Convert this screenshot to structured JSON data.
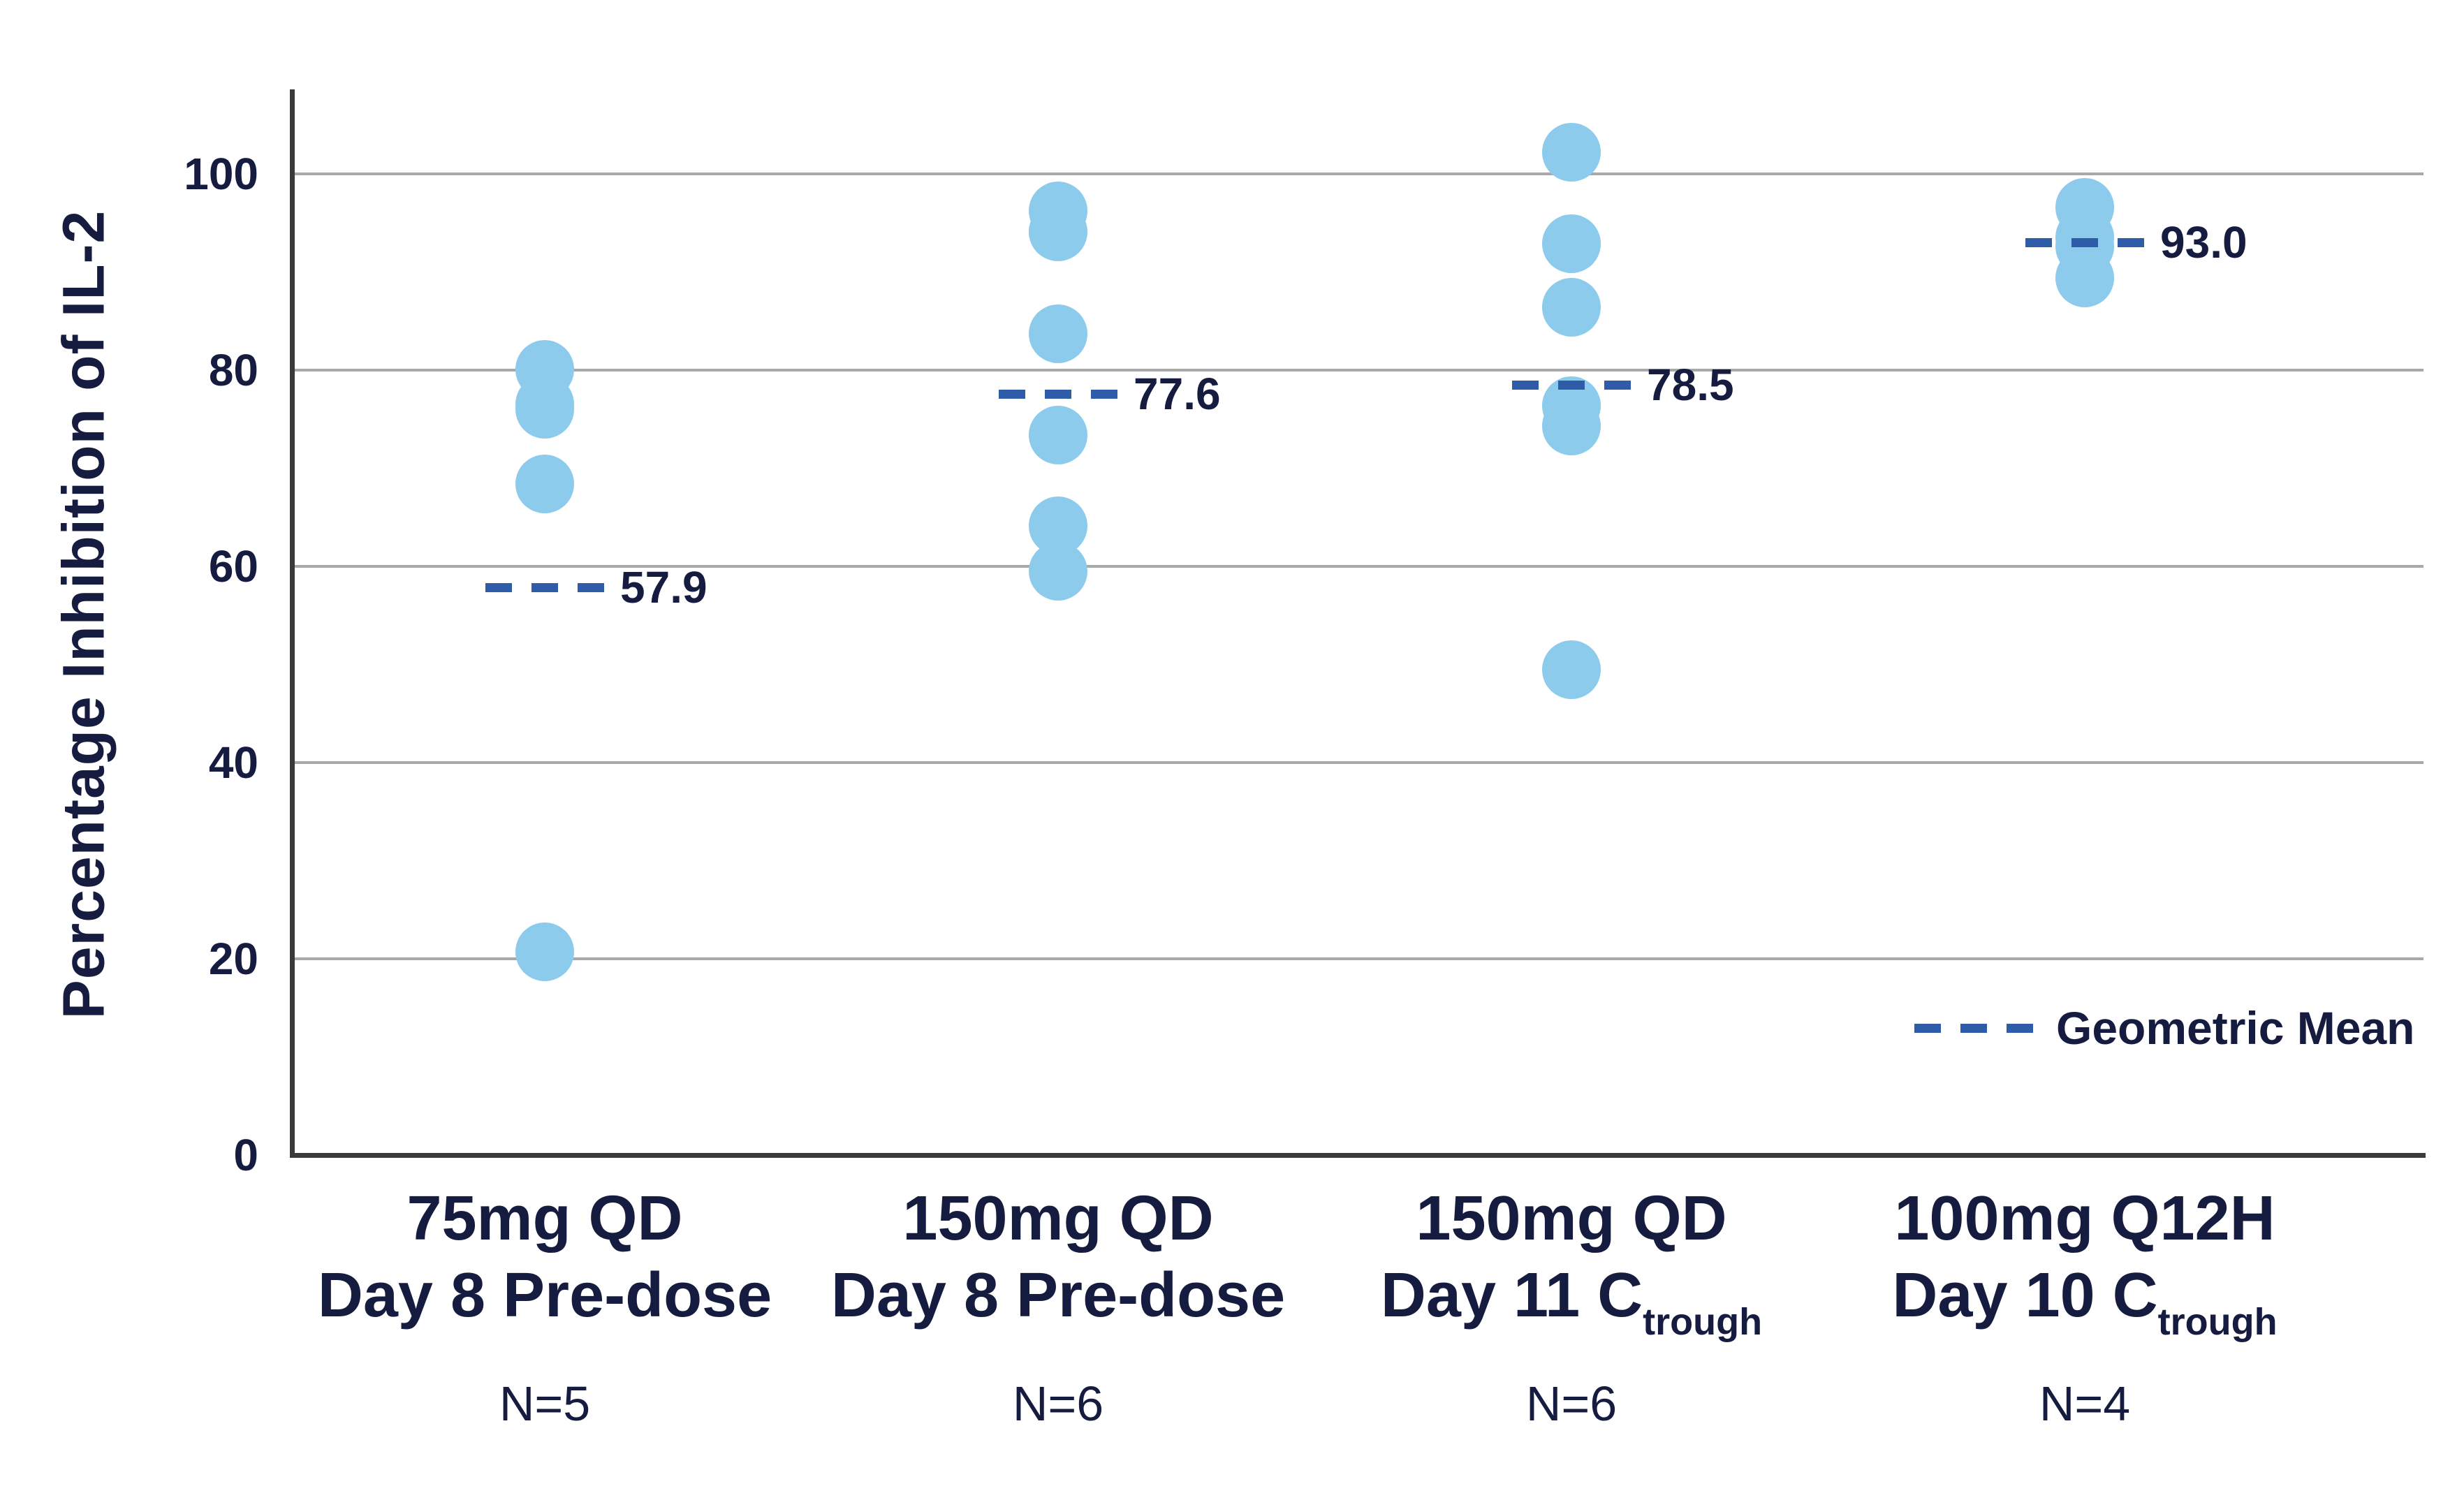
{
  "chart_data": {
    "type": "scatter",
    "title": "",
    "ylabel": "Percentage Inhibition of IL-2",
    "xlabel": "",
    "ylim": [
      0,
      108
    ],
    "yticks": [
      0,
      20,
      40,
      60,
      80,
      100
    ],
    "grid": "horizontal gridlines at labeled ticks",
    "legend": {
      "label": "Geometric Mean",
      "position": "bottom-right-inside-plot"
    },
    "note": "Individual point values estimated from dot positions; some dots overlap or hide behind each other.",
    "groups": [
      {
        "label_lines": [
          "75mg QD",
          "Day 8 Pre-dose"
        ],
        "subscript": "",
        "n_label": "N=5",
        "points": [
          80.1,
          76.5,
          76.0,
          68.4,
          20.7
        ],
        "geometric_mean": 57.9,
        "mean_label": "57.9"
      },
      {
        "label_lines": [
          "150mg QD",
          "Day 8 Pre-dose"
        ],
        "subscript": "",
        "n_label": "N=6",
        "points": [
          96.2,
          94.1,
          83.7,
          73.4,
          64.1,
          59.5
        ],
        "geometric_mean": 77.6,
        "mean_label": "77.6"
      },
      {
        "label_lines": [
          "150mg QD",
          "Day 11 C"
        ],
        "subscript": "trough",
        "n_label": "N=6",
        "points": [
          102.2,
          92.9,
          86.4,
          76.4,
          74.3,
          49.5
        ],
        "geometric_mean": 78.5,
        "mean_label": "78.5"
      },
      {
        "label_lines": [
          "100mg Q12H",
          "Day 10 C"
        ],
        "subscript": "trough",
        "n_label": "N=4",
        "points": [
          96.6,
          93.5,
          92.6,
          89.4
        ],
        "geometric_mean": 93.0,
        "mean_label": "93.0"
      }
    ]
  },
  "colors": {
    "dot_fill": "#8ccbec",
    "dash_blue": "#2e5ca8",
    "text_navy": "#161c3f",
    "gridline_gray": "#a8a8a8",
    "axis_dark": "#3a3a3a",
    "background": "#ffffff"
  }
}
